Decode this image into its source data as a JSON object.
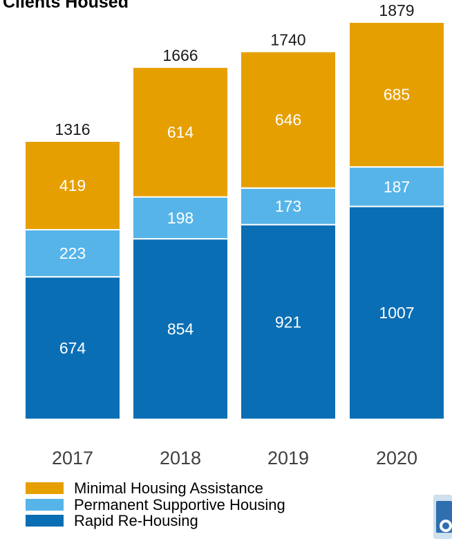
{
  "chart_data": {
    "type": "bar",
    "stacked": true,
    "title": "Clients Housed",
    "categories": [
      "2017",
      "2018",
      "2019",
      "2020"
    ],
    "series": [
      {
        "name": "Rapid Re-Housing",
        "color": "#0a6eb4",
        "values": [
          674,
          854,
          921,
          1007
        ]
      },
      {
        "name": "Permanent Supportive Housing",
        "color": "#56b4e9",
        "values": [
          223,
          198,
          173,
          187
        ]
      },
      {
        "name": "Minimal Housing Assistance",
        "color": "#e69f00",
        "values": [
          419,
          614,
          646,
          685
        ]
      }
    ],
    "totals": [
      1316,
      1666,
      1740,
      1879
    ],
    "legend_order": [
      "Minimal Housing Assistance",
      "Permanent Supportive Housing",
      "Rapid Re-Housing"
    ],
    "legend_position": "bottom-left",
    "grid": false,
    "ylim": [
      0,
      1879
    ]
  }
}
